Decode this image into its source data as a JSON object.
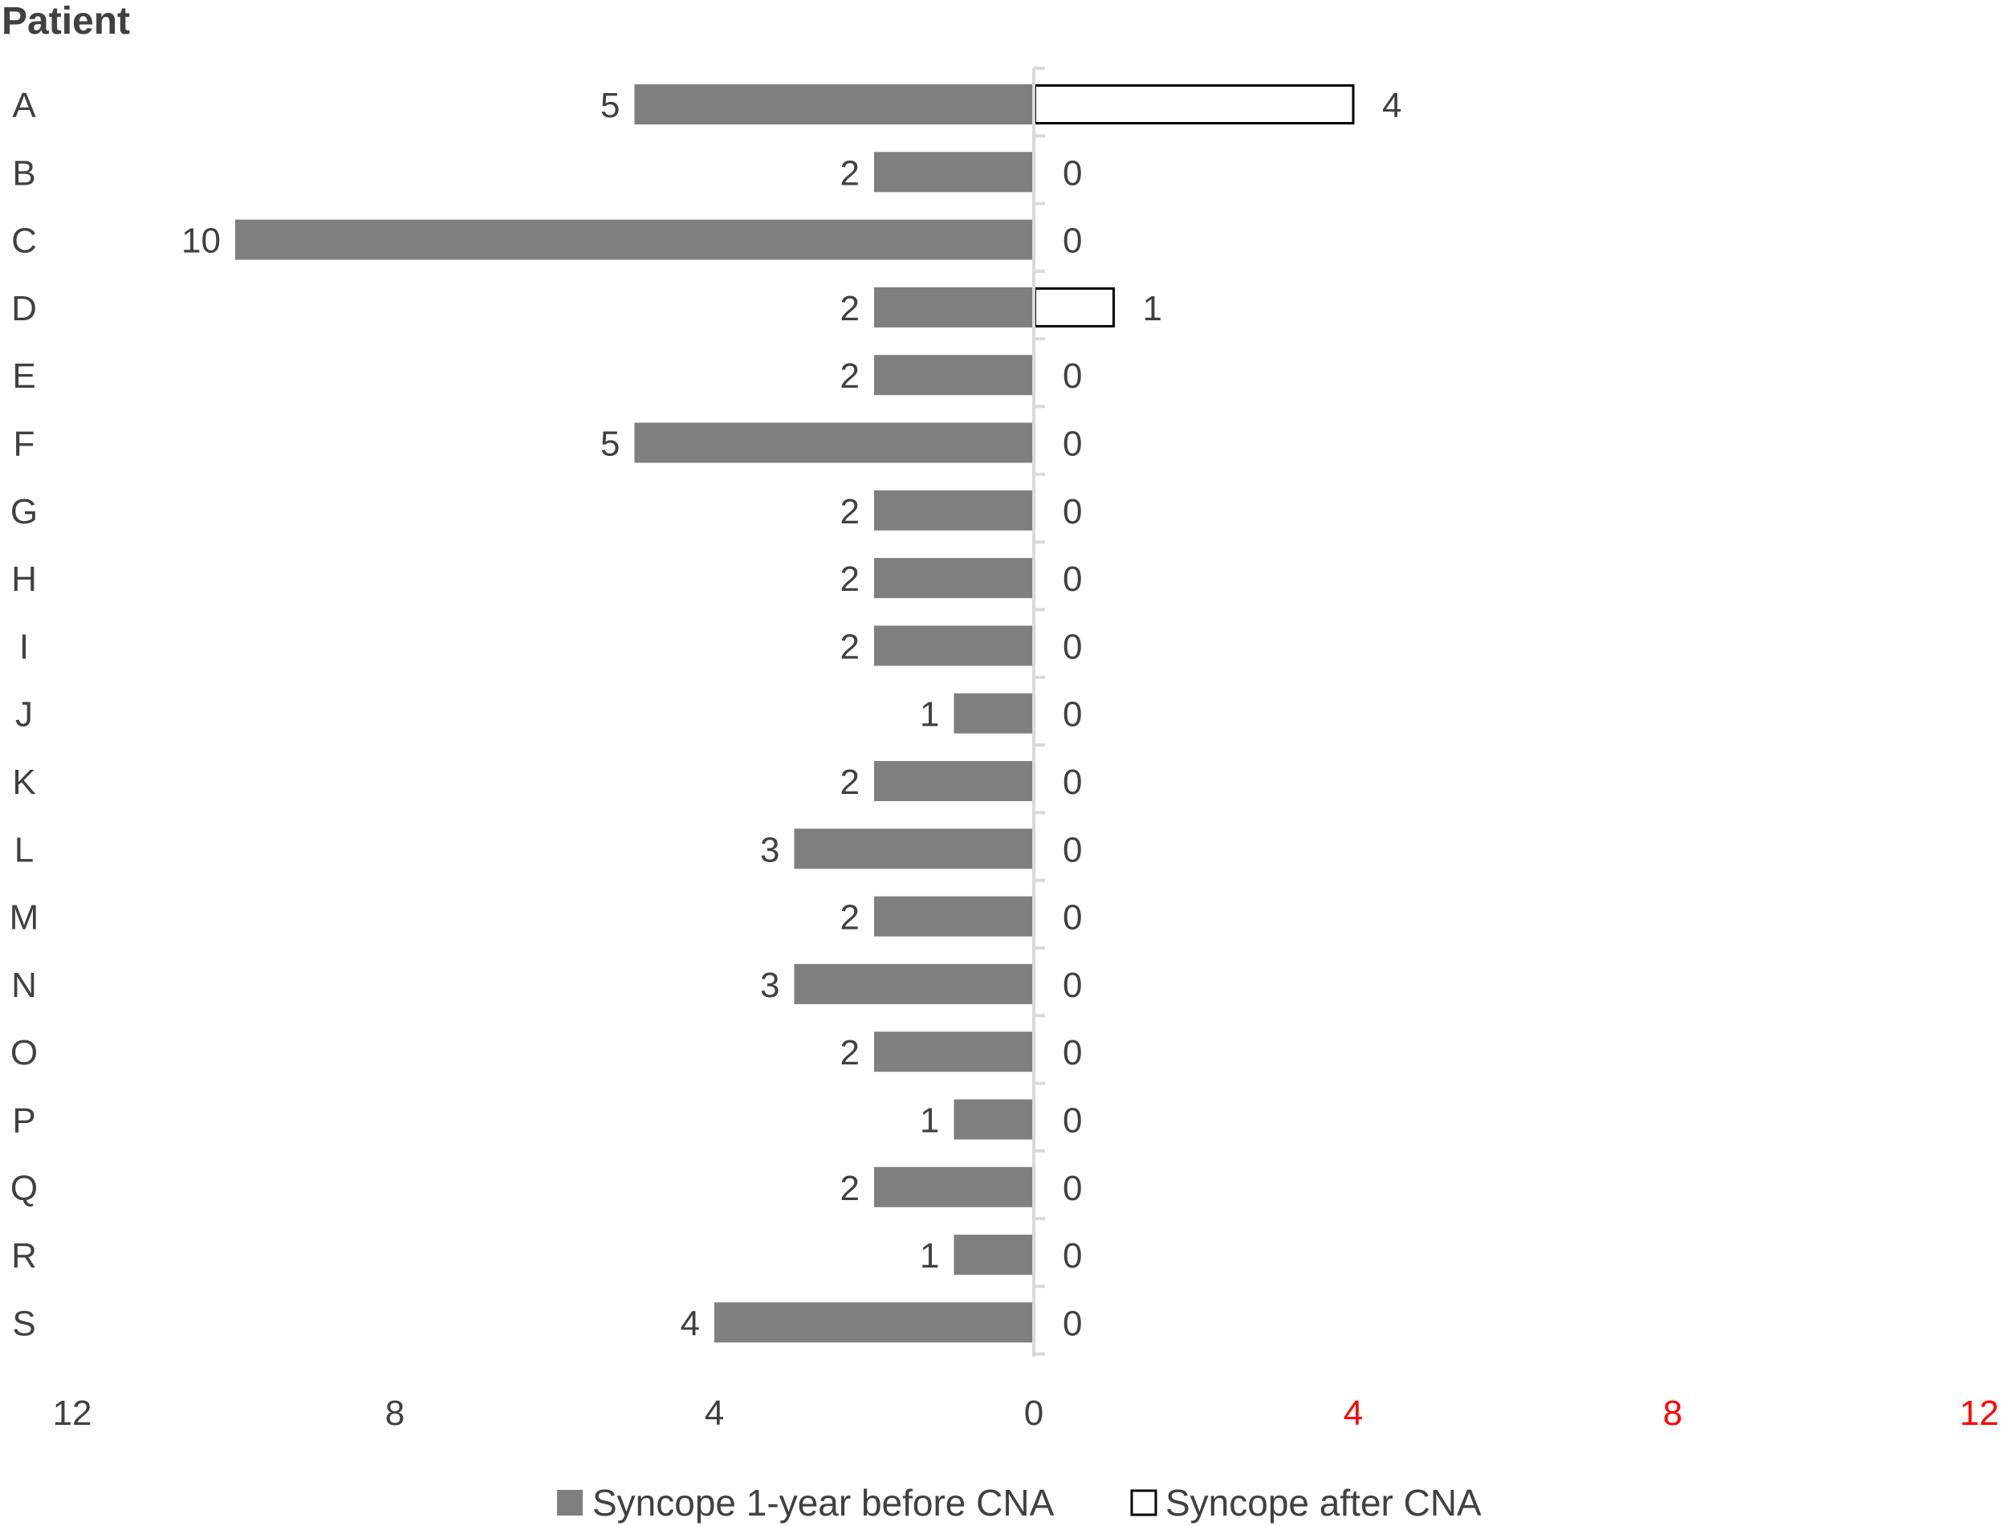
{
  "chart_data": {
    "type": "bar",
    "orientation": "horizontal",
    "layout": "butterfly",
    "y_axis_title": "Patient",
    "categories": [
      "A",
      "B",
      "C",
      "D",
      "E",
      "F",
      "G",
      "H",
      "I",
      "J",
      "K",
      "L",
      "M",
      "N",
      "O",
      "P",
      "Q",
      "R",
      "S"
    ],
    "series": [
      {
        "name": "Syncope 1-year before CNA",
        "side": "left",
        "color": "#7f7f7f",
        "fill": "solid",
        "values": [
          5,
          2,
          10,
          2,
          2,
          5,
          2,
          2,
          2,
          1,
          2,
          3,
          2,
          3,
          2,
          1,
          2,
          1,
          4
        ]
      },
      {
        "name": "Syncope after CNA",
        "side": "right",
        "color": "#000000",
        "fill": "outline",
        "values": [
          4,
          0,
          0,
          1,
          0,
          0,
          0,
          0,
          0,
          0,
          0,
          0,
          0,
          0,
          0,
          0,
          0,
          0,
          0
        ]
      }
    ],
    "x_ticks_left": [
      12,
      8,
      4,
      0
    ],
    "x_ticks_right": [
      4,
      8,
      12
    ],
    "x_tick_colors": {
      "left": "#404040",
      "right": "#ff0000"
    },
    "xlim": [
      0,
      12
    ],
    "grid": false,
    "legend_position": "bottom"
  }
}
